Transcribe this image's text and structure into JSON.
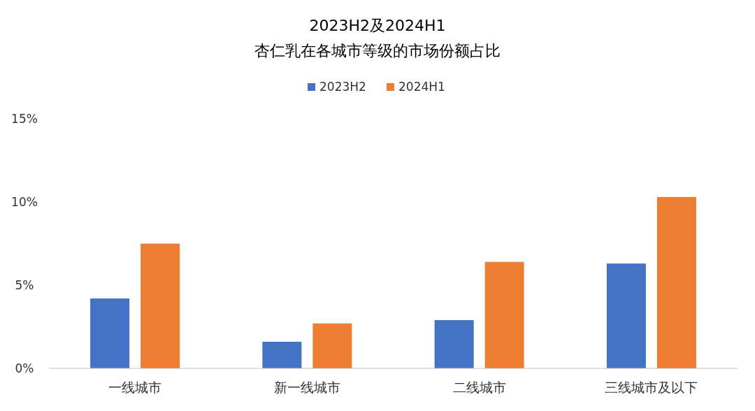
{
  "chart_data": {
    "type": "bar",
    "title": "2023H2及2024H1",
    "subtitle": "杏仁乳在各城市等级的市场份额占比",
    "categories": [
      "一线城市",
      "新一线城市",
      "二线城市",
      "三线城市及以下"
    ],
    "series": [
      {
        "name": "2023H2",
        "color": "#4472c4",
        "values": [
          4.2,
          1.6,
          2.9,
          6.3
        ]
      },
      {
        "name": "2024H1",
        "color": "#ed7d31",
        "values": [
          7.5,
          2.7,
          6.4,
          10.3
        ]
      }
    ],
    "ylim": [
      0,
      15
    ],
    "yticks": [
      {
        "value": 0,
        "label": "0%"
      },
      {
        "value": 5,
        "label": "5%"
      },
      {
        "value": 10,
        "label": "10%"
      },
      {
        "value": 15,
        "label": "15%"
      }
    ],
    "legend": "top"
  }
}
